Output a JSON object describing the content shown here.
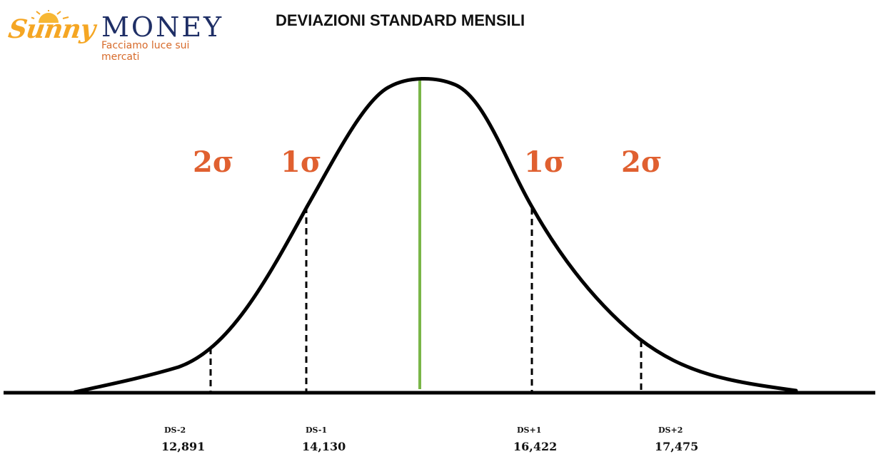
{
  "logo": {
    "sunny": "Sunny",
    "money": "MONEY",
    "tagline": "Facciamo luce sui mercati"
  },
  "title": "DEVIAZIONI STANDARD MENSILI",
  "sigma_labels": {
    "left_2": "2σ",
    "left_1": "1σ",
    "right_1": "1σ",
    "right_2": "2σ"
  },
  "markers": [
    {
      "label": "DS-2",
      "value": "12,891"
    },
    {
      "label": "DS-1",
      "value": "14,130"
    },
    {
      "label": "DS+1",
      "value": "16,422"
    },
    {
      "label": "DS+2",
      "value": "17,475"
    }
  ],
  "colors": {
    "curve": "#000000",
    "mean_line": "#7ab648",
    "sigma_text": "#e06030",
    "brand_orange": "#f5a623",
    "brand_navy": "#1f2f66"
  }
}
